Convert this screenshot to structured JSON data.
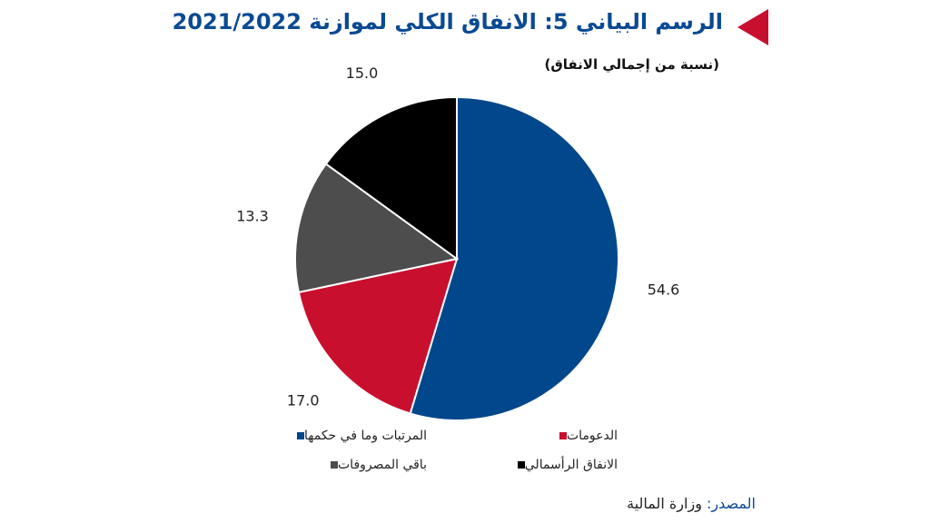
{
  "title": "الرسم البياني 5: الانفاق الكلي لموازنة 2021/2022",
  "subtitle": "(نسبة من إجمالي الانفاق)",
  "source": {
    "label": "المصدر:",
    "value": "وزارة المالية"
  },
  "chart_data": {
    "type": "pie",
    "categories": [
      "المرتبات وما في حكمها",
      "الدعومات",
      "باقي المصروفات",
      "الانفاق الرأسمالي"
    ],
    "values": [
      54.6,
      17.0,
      13.3,
      15.0
    ],
    "value_labels": [
      "54.6",
      "17.0",
      "13.3",
      "15.0"
    ],
    "colors": [
      "#00478c",
      "#c8102e",
      "#4d4d4d",
      "#000000"
    ],
    "start": "12 o'clock",
    "direction": "clockwise",
    "legend_position": "bottom"
  }
}
